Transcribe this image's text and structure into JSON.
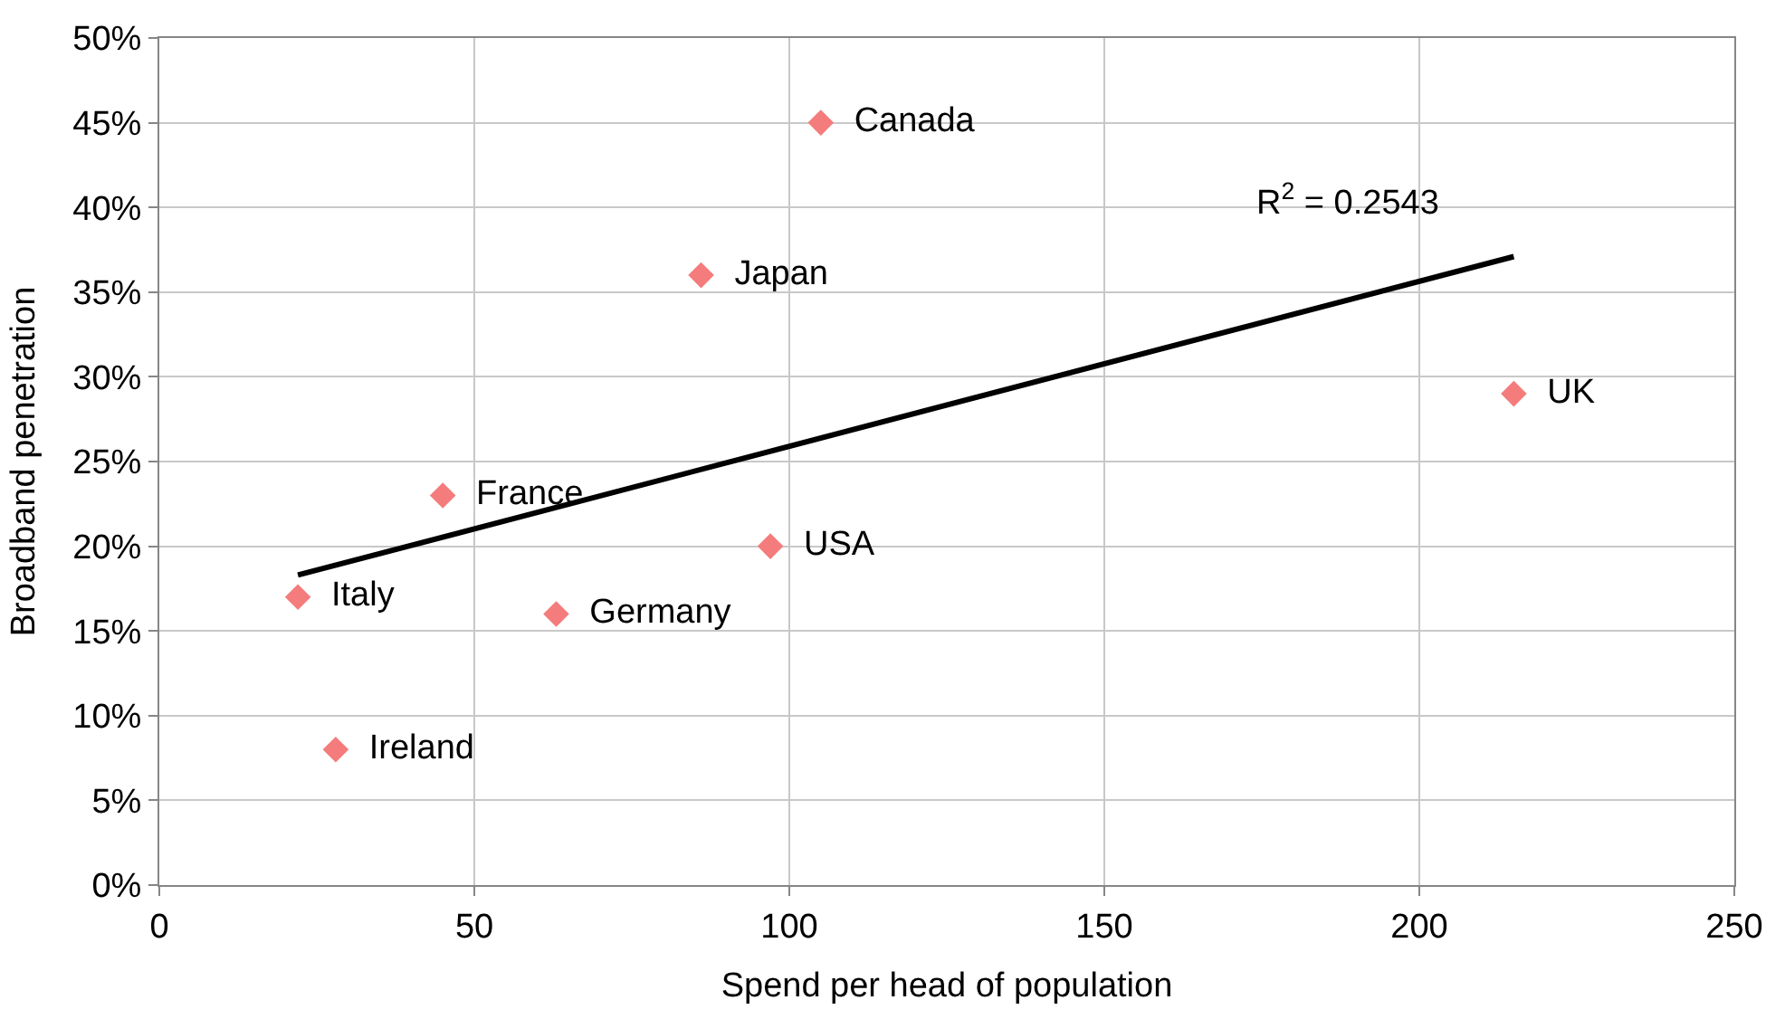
{
  "chart_data": {
    "type": "scatter",
    "xlabel": "Spend per head of population",
    "ylabel": "Broadband penetration",
    "xlim": [
      0,
      250
    ],
    "xticks": [
      0,
      50,
      100,
      150,
      200,
      250
    ],
    "ylim": [
      0,
      50
    ],
    "yticks": [
      {
        "value": 0,
        "label": "0%"
      },
      {
        "value": 5,
        "label": "5%"
      },
      {
        "value": 10,
        "label": "10%"
      },
      {
        "value": 15,
        "label": "15%"
      },
      {
        "value": 20,
        "label": "20%"
      },
      {
        "value": 25,
        "label": "25%"
      },
      {
        "value": 30,
        "label": "30%"
      },
      {
        "value": 35,
        "label": "35%"
      },
      {
        "value": 40,
        "label": "40%"
      },
      {
        "value": 45,
        "label": "45%"
      },
      {
        "value": 50,
        "label": "50%"
      }
    ],
    "grid": true,
    "series": [
      {
        "marker": "diamond",
        "color": "#f47c7c",
        "x": [
          105,
          86,
          215,
          45,
          97,
          22,
          63,
          28
        ],
        "values": [
          45,
          36,
          29,
          23,
          20,
          17,
          16,
          8
        ],
        "value_labels": [
          "Canada",
          "Japan",
          "UK",
          "France",
          "USA",
          "Italy",
          "Germany",
          "Ireland"
        ]
      },
      {
        "type": "line",
        "color": "#000000",
        "x": [
          22,
          215
        ],
        "values": [
          18.3,
          37.1
        ]
      }
    ],
    "annotations": [
      "R$^{2}$ = 0.2543"
    ]
  }
}
